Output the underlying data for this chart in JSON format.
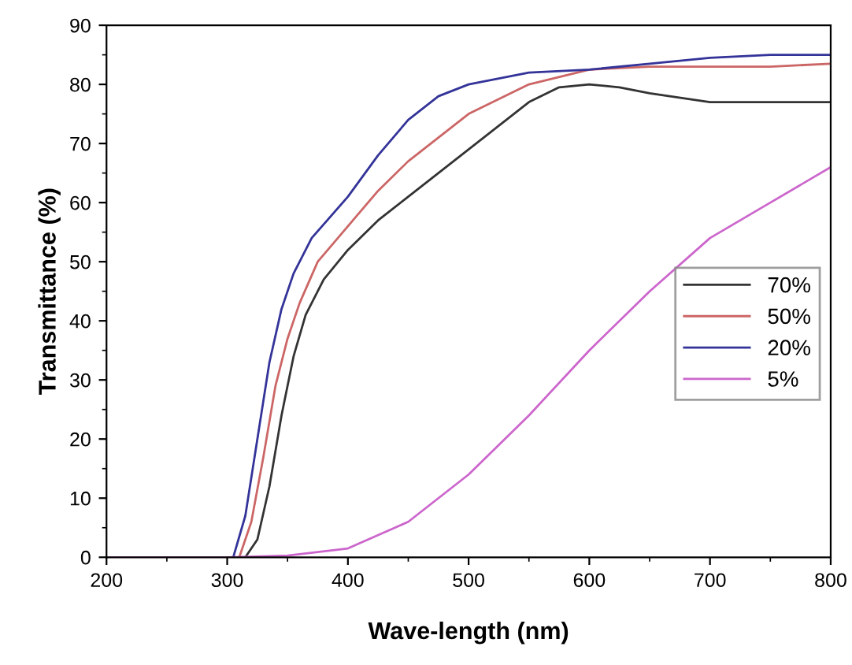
{
  "chart_data": {
    "type": "line",
    "xlabel": "Wave-length (nm)",
    "ylabel": "Transmittance (%)",
    "xlim": [
      200,
      800
    ],
    "ylim": [
      0,
      90
    ],
    "xticks": [
      200,
      300,
      400,
      500,
      600,
      700,
      800
    ],
    "yticks": [
      0,
      10,
      20,
      30,
      40,
      50,
      60,
      70,
      80,
      90
    ],
    "grid": false,
    "legend": "right",
    "marker": "none",
    "line_style": "solid",
    "series": [
      {
        "name": "70%",
        "color": "#333333",
        "x": [
          200,
          300,
          315,
          325,
          335,
          345,
          355,
          365,
          380,
          400,
          425,
          450,
          500,
          550,
          575,
          600,
          625,
          650,
          700,
          750,
          800
        ],
        "values": [
          0,
          0,
          0,
          3,
          12,
          24,
          34,
          41,
          47,
          52,
          57,
          61,
          69,
          77,
          79.5,
          80,
          79.5,
          78.5,
          77,
          77,
          77
        ]
      },
      {
        "name": "50%",
        "color": "#cc6666",
        "x": [
          200,
          300,
          310,
          320,
          330,
          340,
          350,
          360,
          375,
          400,
          425,
          450,
          500,
          550,
          600,
          650,
          700,
          750,
          800
        ],
        "values": [
          0,
          0,
          0,
          6,
          17,
          29,
          37,
          43,
          50,
          56,
          62,
          67,
          75,
          80,
          82.5,
          83,
          83,
          83,
          83.5
        ]
      },
      {
        "name": "20%",
        "color": "#333399",
        "x": [
          200,
          300,
          305,
          315,
          325,
          335,
          345,
          355,
          370,
          400,
          425,
          450,
          475,
          500,
          550,
          600,
          650,
          700,
          750,
          800
        ],
        "values": [
          0,
          0,
          0,
          7,
          20,
          33,
          42,
          48,
          54,
          61,
          68,
          74,
          78,
          80,
          82,
          82.5,
          83.5,
          84.5,
          85,
          85
        ]
      },
      {
        "name": "5%",
        "color": "#cc66cc",
        "x": [
          200,
          300,
          350,
          400,
          450,
          500,
          550,
          600,
          650,
          700,
          750,
          800
        ],
        "values": [
          0,
          0,
          0.3,
          1.5,
          6,
          14,
          24,
          35,
          45,
          54,
          60,
          66
        ]
      }
    ]
  }
}
